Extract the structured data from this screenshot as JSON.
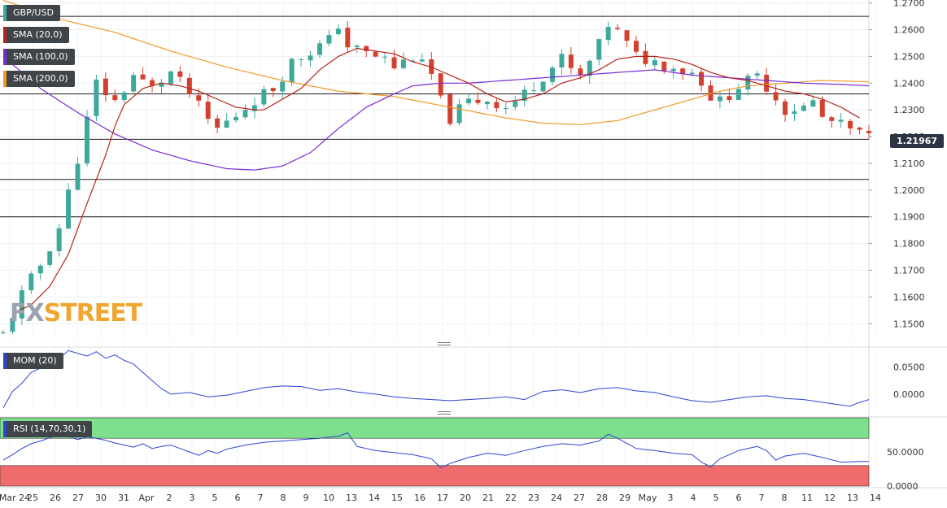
{
  "instrument": "GBP/USD",
  "current_price": "1.21967",
  "logo": {
    "part1": "FX",
    "part2": "STREET"
  },
  "colors": {
    "up": "#3ea89b",
    "down": "#d4402f",
    "sma20": "#b7241b",
    "sma100": "#7a2ad6",
    "sma200": "#f29a28",
    "mom": "#2d44d8",
    "rsi": "#2d44d8",
    "rsi_overbought": "#7ee08c",
    "rsi_oversold": "#f06b6b"
  },
  "indicators": {
    "main": [
      {
        "name": "sma20",
        "label": "SMA (20,0)"
      },
      {
        "name": "sma100",
        "label": "SMA (100,0)"
      },
      {
        "name": "sma200",
        "label": "SMA (200,0)"
      }
    ],
    "mom_label": "MOM (20)",
    "rsi_label": "RSI (14,70,30,1)"
  },
  "chart_data": {
    "type": "candlestick",
    "price_axis": {
      "ticks": [
        "1.2700",
        "1.2600",
        "1.2500",
        "1.2400",
        "1.2300",
        "1.2200",
        "1.2100",
        "1.2000",
        "1.1900",
        "1.1800",
        "1.1700",
        "1.1600",
        "1.1500"
      ],
      "min": 1.144,
      "max": 1.2705
    },
    "horizontal_levels": [
      1.265,
      1.236,
      1.219,
      1.204,
      1.19
    ],
    "mom_axis": {
      "ticks": [
        "0.0500",
        "0.0000"
      ],
      "min": -0.03,
      "max": 0.085
    },
    "rsi_axis": {
      "ticks": [
        "50.0000",
        "0.0000"
      ],
      "min": 0,
      "max": 100,
      "overbought": 70,
      "oversold": 30
    },
    "date_labels": [
      "Mar 24",
      "25",
      "26",
      "27",
      "30",
      "31",
      "Apr",
      "2",
      "3",
      "5",
      "6",
      "7",
      "8",
      "9",
      "10",
      "13",
      "14",
      "15",
      "16",
      "17",
      "20",
      "21",
      "22",
      "23",
      "24",
      "27",
      "28",
      "29",
      "May",
      "3",
      "4",
      "5",
      "6",
      "7",
      "8",
      "11",
      "12",
      "13",
      "14"
    ],
    "price_path": [
      [
        0,
        1.146
      ],
      [
        2,
        1.161
      ],
      [
        4,
        1.172
      ],
      [
        6,
        1.186
      ],
      [
        8,
        1.212
      ],
      [
        10,
        1.24
      ],
      [
        12,
        1.233
      ],
      [
        14,
        1.243
      ],
      [
        16,
        1.238
      ],
      [
        18,
        1.244
      ],
      [
        20,
        1.236
      ],
      [
        22,
        1.226
      ],
      [
        23,
        1.223
      ],
      [
        25,
        1.228
      ],
      [
        27,
        1.234
      ],
      [
        29,
        1.238
      ],
      [
        31,
        1.248
      ],
      [
        33,
        1.252
      ],
      [
        35,
        1.256
      ],
      [
        36,
        1.262
      ],
      [
        37,
        1.254
      ],
      [
        39,
        1.251
      ],
      [
        41,
        1.249
      ],
      [
        42,
        1.246
      ],
      [
        44,
        1.25
      ],
      [
        46,
        1.243
      ],
      [
        47,
        1.233
      ],
      [
        48,
        1.227
      ],
      [
        50,
        1.233
      ],
      [
        52,
        1.234
      ],
      [
        54,
        1.231
      ],
      [
        56,
        1.236
      ],
      [
        58,
        1.243
      ],
      [
        60,
        1.249
      ],
      [
        61,
        1.245
      ],
      [
        62,
        1.242
      ],
      [
        64,
        1.254
      ],
      [
        65,
        1.262
      ],
      [
        66,
        1.259
      ],
      [
        68,
        1.25
      ],
      [
        70,
        1.248
      ],
      [
        72,
        1.246
      ],
      [
        74,
        1.244
      ],
      [
        75,
        1.241
      ],
      [
        76,
        1.235
      ],
      [
        77,
        1.233
      ],
      [
        79,
        1.239
      ],
      [
        81,
        1.242
      ],
      [
        82,
        1.239
      ],
      [
        84,
        1.23
      ],
      [
        86,
        1.231
      ],
      [
        87,
        1.233
      ],
      [
        88,
        1.227
      ],
      [
        90,
        1.224
      ],
      [
        92,
        1.221
      ],
      [
        93,
        1.2197
      ]
    ],
    "sma20_path": [
      [
        1,
        1.154
      ],
      [
        3,
        1.157
      ],
      [
        5,
        1.164
      ],
      [
        7,
        1.176
      ],
      [
        9,
        1.195
      ],
      [
        11,
        1.213
      ],
      [
        12,
        1.224
      ],
      [
        13,
        1.232
      ],
      [
        15,
        1.238
      ],
      [
        17,
        1.24
      ],
      [
        19,
        1.239
      ],
      [
        21,
        1.237
      ],
      [
        23,
        1.234
      ],
      [
        25,
        1.231
      ],
      [
        27,
        1.23
      ],
      [
        28,
        1.23
      ],
      [
        30,
        1.234
      ],
      [
        32,
        1.238
      ],
      [
        34,
        1.245
      ],
      [
        36,
        1.25
      ],
      [
        38,
        1.253
      ],
      [
        40,
        1.252
      ],
      [
        42,
        1.251
      ],
      [
        44,
        1.248
      ],
      [
        46,
        1.246
      ],
      [
        48,
        1.243
      ],
      [
        50,
        1.24
      ],
      [
        52,
        1.236
      ],
      [
        54,
        1.233
      ],
      [
        56,
        1.234
      ],
      [
        58,
        1.236
      ],
      [
        60,
        1.24
      ],
      [
        62,
        1.242
      ],
      [
        64,
        1.245
      ],
      [
        66,
        1.249
      ],
      [
        68,
        1.25
      ],
      [
        70,
        1.25
      ],
      [
        72,
        1.249
      ],
      [
        74,
        1.247
      ],
      [
        76,
        1.244
      ],
      [
        78,
        1.242
      ],
      [
        80,
        1.241
      ],
      [
        82,
        1.239
      ],
      [
        84,
        1.237
      ],
      [
        86,
        1.236
      ],
      [
        88,
        1.234
      ],
      [
        90,
        1.231
      ],
      [
        92,
        1.227
      ]
    ],
    "sma100_path": [
      [
        0,
        1.25
      ],
      [
        4,
        1.238
      ],
      [
        8,
        1.229
      ],
      [
        12,
        1.221
      ],
      [
        16,
        1.215
      ],
      [
        20,
        1.211
      ],
      [
        24,
        1.208
      ],
      [
        27,
        1.2075
      ],
      [
        30,
        1.209
      ],
      [
        33,
        1.214
      ],
      [
        36,
        1.223
      ],
      [
        39,
        1.231
      ],
      [
        42,
        1.236
      ],
      [
        44,
        1.239
      ],
      [
        47,
        1.24
      ],
      [
        50,
        1.24
      ],
      [
        54,
        1.241
      ],
      [
        58,
        1.242
      ],
      [
        62,
        1.243
      ],
      [
        66,
        1.244
      ],
      [
        70,
        1.245
      ],
      [
        74,
        1.243
      ],
      [
        78,
        1.242
      ],
      [
        82,
        1.241
      ],
      [
        86,
        1.24
      ],
      [
        90,
        1.2395
      ],
      [
        93,
        1.239
      ]
    ],
    "sma200_path": [
      [
        0,
        1.271
      ],
      [
        6,
        1.264
      ],
      [
        12,
        1.259
      ],
      [
        18,
        1.252
      ],
      [
        24,
        1.246
      ],
      [
        30,
        1.241
      ],
      [
        36,
        1.237
      ],
      [
        42,
        1.235
      ],
      [
        48,
        1.231
      ],
      [
        54,
        1.227
      ],
      [
        58,
        1.225
      ],
      [
        62,
        1.2245
      ],
      [
        66,
        1.226
      ],
      [
        70,
        1.23
      ],
      [
        74,
        1.234
      ],
      [
        77,
        1.237
      ],
      [
        80,
        1.239
      ],
      [
        84,
        1.24
      ],
      [
        88,
        1.241
      ],
      [
        93,
        1.2405
      ]
    ],
    "mom_path": [
      [
        0,
        -0.025
      ],
      [
        1,
        0.005
      ],
      [
        2,
        0.02
      ],
      [
        3,
        0.04
      ],
      [
        5,
        0.055
      ],
      [
        6,
        0.065
      ],
      [
        7,
        0.08
      ],
      [
        8,
        0.075
      ],
      [
        9,
        0.07
      ],
      [
        10,
        0.078
      ],
      [
        11,
        0.066
      ],
      [
        12,
        0.072
      ],
      [
        13,
        0.062
      ],
      [
        14,
        0.055
      ],
      [
        15,
        0.04
      ],
      [
        16,
        0.025
      ],
      [
        17,
        0.01
      ],
      [
        18,
        0.0
      ],
      [
        20,
        0.003
      ],
      [
        22,
        -0.005
      ],
      [
        24,
        -0.002
      ],
      [
        26,
        0.005
      ],
      [
        28,
        0.012
      ],
      [
        30,
        0.015
      ],
      [
        32,
        0.014
      ],
      [
        34,
        0.007
      ],
      [
        36,
        0.01
      ],
      [
        38,
        0.004
      ],
      [
        40,
        0.0
      ],
      [
        42,
        -0.005
      ],
      [
        44,
        -0.008
      ],
      [
        46,
        -0.01
      ],
      [
        48,
        -0.012
      ],
      [
        50,
        -0.01
      ],
      [
        52,
        -0.008
      ],
      [
        54,
        -0.005
      ],
      [
        56,
        -0.01
      ],
      [
        58,
        0.005
      ],
      [
        60,
        0.008
      ],
      [
        62,
        0.003
      ],
      [
        64,
        0.01
      ],
      [
        66,
        0.012
      ],
      [
        68,
        0.006
      ],
      [
        70,
        0.003
      ],
      [
        72,
        -0.005
      ],
      [
        74,
        -0.012
      ],
      [
        76,
        -0.015
      ],
      [
        78,
        -0.01
      ],
      [
        80,
        -0.005
      ],
      [
        82,
        -0.003
      ],
      [
        84,
        -0.008
      ],
      [
        86,
        -0.01
      ],
      [
        88,
        -0.015
      ],
      [
        90,
        -0.02
      ],
      [
        91,
        -0.022
      ],
      [
        92,
        -0.015
      ],
      [
        93,
        -0.01
      ]
    ],
    "rsi_path": [
      [
        0,
        38
      ],
      [
        1,
        46
      ],
      [
        2,
        55
      ],
      [
        3,
        62
      ],
      [
        4,
        66
      ],
      [
        5,
        71
      ],
      [
        6,
        74
      ],
      [
        7,
        73
      ],
      [
        8,
        68
      ],
      [
        9,
        72
      ],
      [
        10,
        70
      ],
      [
        11,
        67
      ],
      [
        12,
        63
      ],
      [
        13,
        60
      ],
      [
        14,
        57
      ],
      [
        15,
        62
      ],
      [
        16,
        55
      ],
      [
        17,
        58
      ],
      [
        18,
        60
      ],
      [
        19,
        55
      ],
      [
        20,
        50
      ],
      [
        21,
        45
      ],
      [
        22,
        52
      ],
      [
        23,
        48
      ],
      [
        24,
        54
      ],
      [
        26,
        60
      ],
      [
        28,
        64
      ],
      [
        30,
        66
      ],
      [
        32,
        68
      ],
      [
        34,
        70
      ],
      [
        36,
        73
      ],
      [
        37,
        78
      ],
      [
        38,
        58
      ],
      [
        40,
        52
      ],
      [
        42,
        49
      ],
      [
        44,
        46
      ],
      [
        46,
        40
      ],
      [
        47,
        27
      ],
      [
        48,
        33
      ],
      [
        50,
        42
      ],
      [
        52,
        48
      ],
      [
        54,
        45
      ],
      [
        56,
        52
      ],
      [
        58,
        58
      ],
      [
        60,
        62
      ],
      [
        62,
        60
      ],
      [
        64,
        66
      ],
      [
        65,
        76
      ],
      [
        66,
        70
      ],
      [
        68,
        55
      ],
      [
        70,
        52
      ],
      [
        72,
        48
      ],
      [
        74,
        46
      ],
      [
        75,
        35
      ],
      [
        76,
        28
      ],
      [
        77,
        40
      ],
      [
        79,
        52
      ],
      [
        81,
        58
      ],
      [
        82,
        52
      ],
      [
        83,
        38
      ],
      [
        84,
        44
      ],
      [
        86,
        48
      ],
      [
        88,
        42
      ],
      [
        90,
        35
      ],
      [
        92,
        36
      ],
      [
        93,
        36
      ]
    ]
  }
}
